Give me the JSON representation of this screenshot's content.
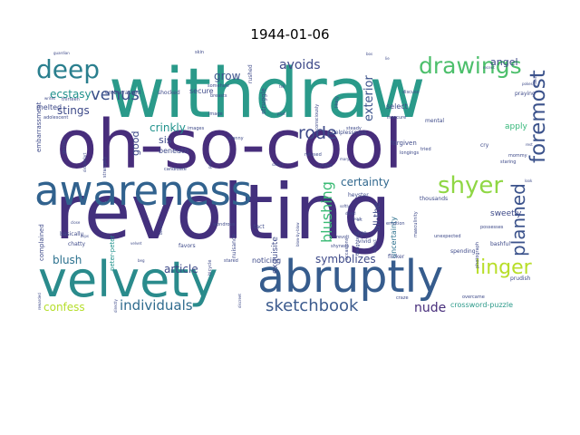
{
  "chart_data": {
    "type": "wordcloud",
    "title": "1944-01-06",
    "words": [
      {
        "text": "withdraw",
        "weight": 100,
        "color": "#2a9a8a"
      },
      {
        "text": "oh-so-cool",
        "weight": 96,
        "color": "#472d7b"
      },
      {
        "text": "revolting",
        "weight": 98,
        "color": "#43307d"
      },
      {
        "text": "awareness",
        "weight": 62,
        "color": "#31628e"
      },
      {
        "text": "velvety",
        "weight": 58,
        "color": "#2a8b8c"
      },
      {
        "text": "abruptly",
        "weight": 52,
        "color": "#365c8d"
      },
      {
        "text": "deep",
        "weight": 30,
        "color": "#2a7f8e"
      },
      {
        "text": "drawings",
        "weight": 28,
        "color": "#4cbf6b"
      },
      {
        "text": "shyer",
        "weight": 26,
        "color": "#8fd744"
      },
      {
        "text": "linger",
        "weight": 24,
        "color": "#b8de29"
      },
      {
        "text": "foremost",
        "weight": 24,
        "color": "#3b528b"
      },
      {
        "text": "planned",
        "weight": 20,
        "color": "#3b528b"
      },
      {
        "text": "venus",
        "weight": 18,
        "color": "#3b528b"
      },
      {
        "text": "sketchbook",
        "weight": 18,
        "color": "#3b5a8d"
      },
      {
        "text": "individuals",
        "weight": 16,
        "color": "#2f6b8e"
      },
      {
        "text": "rode",
        "weight": 18,
        "color": "#3e4a89"
      },
      {
        "text": "avoids",
        "weight": 14,
        "color": "#3e4a89"
      },
      {
        "text": "blushing",
        "weight": 16,
        "color": "#3bbb75"
      },
      {
        "text": "nude",
        "weight": 14,
        "color": "#472d7b"
      },
      {
        "text": "grow",
        "weight": 12,
        "color": "#3b528b"
      },
      {
        "text": "ecstasy",
        "weight": 12,
        "color": "#20928c"
      },
      {
        "text": "stings",
        "weight": 12,
        "color": "#3e4a89"
      },
      {
        "text": "crinkly",
        "weight": 12,
        "color": "#20928c"
      },
      {
        "text": "sis",
        "weight": 12,
        "color": "#3e4a89"
      },
      {
        "text": "good",
        "weight": 11,
        "color": "#3e4a89"
      },
      {
        "text": "exterior",
        "weight": 12,
        "color": "#3b528b"
      },
      {
        "text": "certainty",
        "weight": 12,
        "color": "#31688e"
      },
      {
        "text": "angel",
        "weight": 11,
        "color": "#3e4a89"
      },
      {
        "text": "all-the",
        "weight": 10,
        "color": "#3e4a89"
      },
      {
        "text": "symbolizes",
        "weight": 12,
        "color": "#3e4a89"
      },
      {
        "text": "blush",
        "weight": 12,
        "color": "#2c718e"
      },
      {
        "text": "article",
        "weight": 12,
        "color": "#3e4a89"
      },
      {
        "text": "confess",
        "weight": 12,
        "color": "#b5de2b"
      },
      {
        "text": "crossword-puzzle",
        "weight": 8,
        "color": "#2c9a8a"
      },
      {
        "text": "sweetly",
        "weight": 9,
        "color": "#3e4a89"
      },
      {
        "text": "exquisite",
        "weight": 9,
        "color": "#3e4a89"
      },
      {
        "text": "uncertainty",
        "weight": 8,
        "color": "#2c718e"
      },
      {
        "text": "apply",
        "weight": 9,
        "color": "#35b779"
      },
      {
        "text": "select",
        "weight": 8,
        "color": "#3e4a89"
      },
      {
        "text": "secure",
        "weight": 8,
        "color": "#3e4a89"
      },
      {
        "text": "struggle",
        "weight": 7,
        "color": "#3e4a89"
      },
      {
        "text": "melted",
        "weight": 8,
        "color": "#3e4a89"
      },
      {
        "text": "complained",
        "weight": 7,
        "color": "#3e4a89"
      },
      {
        "text": "embarrassment",
        "weight": 7,
        "color": "#3e4a89"
      },
      {
        "text": "beneath",
        "weight": 8,
        "color": "#3e4a89"
      },
      {
        "text": "noticing",
        "weight": 8,
        "color": "#3e4a89"
      },
      {
        "text": "peter-peter",
        "weight": 7,
        "color": "#20928c"
      },
      {
        "text": "forgiven",
        "weight": 7,
        "color": "#3e4a89"
      },
      {
        "text": "helplessness",
        "weight": 6,
        "color": "#3e4a89"
      },
      {
        "text": "heyster",
        "weight": 6,
        "color": "#3e4a89"
      },
      {
        "text": "tact",
        "weight": 6,
        "color": "#3e4a89"
      },
      {
        "text": "bashful",
        "weight": 6,
        "color": "#3e4a89"
      },
      {
        "text": "prudish",
        "weight": 6,
        "color": "#3e4a89"
      },
      {
        "text": "cry",
        "weight": 6,
        "color": "#3e4a89"
      },
      {
        "text": "rushed",
        "weight": 6,
        "color": "#3e4a89"
      },
      {
        "text": "embarrassed",
        "weight": 6,
        "color": "#3e4a89"
      },
      {
        "text": "shocked",
        "weight": 6,
        "color": "#3e4a89"
      },
      {
        "text": "praying",
        "weight": 6,
        "color": "#3e4a89"
      },
      {
        "text": "mental",
        "weight": 6,
        "color": "#3e4a89"
      },
      {
        "text": "thousands",
        "weight": 6,
        "color": "#3e4a89"
      },
      {
        "text": "nuisance",
        "weight": 6,
        "color": "#3e4a89"
      },
      {
        "text": "urge",
        "weight": 6,
        "color": "#3e4a89"
      },
      {
        "text": "vivid",
        "weight": 6,
        "color": "#3e4a89"
      },
      {
        "text": "flicker",
        "weight": 6,
        "color": "#3e4a89"
      },
      {
        "text": "spending",
        "weight": 6,
        "color": "#3e4a89"
      },
      {
        "text": "chatty",
        "weight": 6,
        "color": "#3e4a89"
      },
      {
        "text": "basically",
        "weight": 6,
        "color": "#3e4a89"
      },
      {
        "text": "favors",
        "weight": 6,
        "color": "#3e4a89"
      },
      {
        "text": "images",
        "weight": 5,
        "color": "#3e4a89"
      },
      {
        "text": "breasts",
        "weight": 5,
        "color": "#3e4a89"
      },
      {
        "text": "discuss",
        "weight": 5,
        "color": "#3e4a89"
      },
      {
        "text": "gentle",
        "weight": 5,
        "color": "#3e4a89"
      },
      {
        "text": "photograph",
        "weight": 5,
        "color": "#3e4a89"
      },
      {
        "text": "refused",
        "weight": 5,
        "color": "#3e4a89"
      },
      {
        "text": "loved",
        "weight": 5,
        "color": "#3e4a89"
      },
      {
        "text": "daughter",
        "weight": 5,
        "color": "#3e4a89"
      },
      {
        "text": "adolescent",
        "weight": 5,
        "color": "#3e4a89"
      },
      {
        "text": "thirteen",
        "weight": 5,
        "color": "#3e4a89"
      },
      {
        "text": "strangely",
        "weight": 5,
        "color": "#3e4a89"
      },
      {
        "text": "candidate",
        "weight": 5,
        "color": "#3e4a89"
      },
      {
        "text": "occasions",
        "weight": 5,
        "color": "#3e4a89"
      },
      {
        "text": "bicycle",
        "weight": 5,
        "color": "#3e4a89"
      },
      {
        "text": "wondrous",
        "weight": 5,
        "color": "#3e4a89"
      },
      {
        "text": "stared",
        "weight": 5,
        "color": "#3e4a89"
      },
      {
        "text": "shyness",
        "weight": 5,
        "color": "#3e4a89"
      },
      {
        "text": "revolt",
        "weight": 5,
        "color": "#3e4a89"
      },
      {
        "text": "craze",
        "weight": 5,
        "color": "#3e4a89"
      },
      {
        "text": "overcame",
        "weight": 5,
        "color": "#3e4a89"
      },
      {
        "text": "masculinity",
        "weight": 5,
        "color": "#3e4a89"
      },
      {
        "text": "unexpected",
        "weight": 5,
        "color": "#3e4a89"
      },
      {
        "text": "possesses",
        "weight": 5,
        "color": "#3e4a89"
      },
      {
        "text": "staring",
        "weight": 5,
        "color": "#3e4a89"
      },
      {
        "text": "mommy",
        "weight": 5,
        "color": "#3e4a89"
      },
      {
        "text": "longings",
        "weight": 5,
        "color": "#3e4a89"
      },
      {
        "text": "emotion",
        "weight": 5,
        "color": "#3e4a89"
      },
      {
        "text": "tried",
        "weight": 5,
        "color": "#3e4a89"
      },
      {
        "text": "steady",
        "weight": 5,
        "color": "#3e4a89"
      },
      {
        "text": "likely",
        "weight": 5,
        "color": "#3e4a89"
      },
      {
        "text": "unconsciously",
        "weight": 5,
        "color": "#3e4a89"
      },
      {
        "text": "insecure",
        "weight": 5,
        "color": "#3e4a89"
      },
      {
        "text": "somehow",
        "weight": 5,
        "color": "#3e4a89"
      },
      {
        "text": "image",
        "weight": 5,
        "color": "#3e4a89"
      },
      {
        "text": "granny",
        "weight": 5,
        "color": "#3e4a89"
      },
      {
        "text": "skin",
        "weight": 5,
        "color": "#3e4a89"
      },
      {
        "text": "guardian",
        "weight": 4,
        "color": "#3e4a89"
      },
      {
        "text": "writes",
        "weight": 4,
        "color": "#3e4a89"
      },
      {
        "text": "discomfort",
        "weight": 4,
        "color": "#3e4a89"
      },
      {
        "text": "velvet",
        "weight": 4,
        "color": "#3e4a89"
      },
      {
        "text": "trips",
        "weight": 4,
        "color": "#3e4a89"
      },
      {
        "text": "close",
        "weight": 4,
        "color": "#3e4a89"
      },
      {
        "text": "behave",
        "weight": 4,
        "color": "#3e4a89"
      },
      {
        "text": "directly",
        "weight": 4,
        "color": "#3e4a89"
      },
      {
        "text": "beg",
        "weight": 4,
        "color": "#3e4a89"
      },
      {
        "text": "discreet",
        "weight": 4,
        "color": "#3e4a89"
      },
      {
        "text": "blow-by-blow",
        "weight": 4,
        "color": "#3e4a89"
      },
      {
        "text": "dared",
        "weight": 4,
        "color": "#3e4a89"
      },
      {
        "text": "softly",
        "weight": 4,
        "color": "#3e4a89"
      },
      {
        "text": "art",
        "weight": 4,
        "color": "#3e4a89"
      },
      {
        "text": "bos",
        "weight": 4,
        "color": "#3e4a89"
      },
      {
        "text": "lie",
        "weight": 4,
        "color": "#3e4a89"
      },
      {
        "text": "recent",
        "weight": 4,
        "color": "#3e4a89"
      },
      {
        "text": "habits",
        "weight": 4,
        "color": "#3e4a89"
      },
      {
        "text": "pokes",
        "weight": 4,
        "color": "#3e4a89"
      },
      {
        "text": "look",
        "weight": 4,
        "color": "#3e4a89"
      },
      {
        "text": "tell",
        "weight": 4,
        "color": "#3e4a89"
      },
      {
        "text": "past",
        "weight": 4,
        "color": "#3e4a89"
      },
      {
        "text": "mary",
        "weight": 4,
        "color": "#3e4a89"
      },
      {
        "text": "read",
        "weight": 4,
        "color": "#3e4a89"
      },
      {
        "text": "satisfy",
        "weight": 4,
        "color": "#3e4a89"
      },
      {
        "text": "proof",
        "weight": 4,
        "color": "#3e4a89"
      },
      {
        "text": "rest",
        "weight": 4,
        "color": "#3e4a89"
      },
      {
        "text": "respect",
        "weight": 4,
        "color": "#3e4a89"
      },
      {
        "text": "rewarded",
        "weight": 4,
        "color": "#3e4a89"
      }
    ]
  }
}
